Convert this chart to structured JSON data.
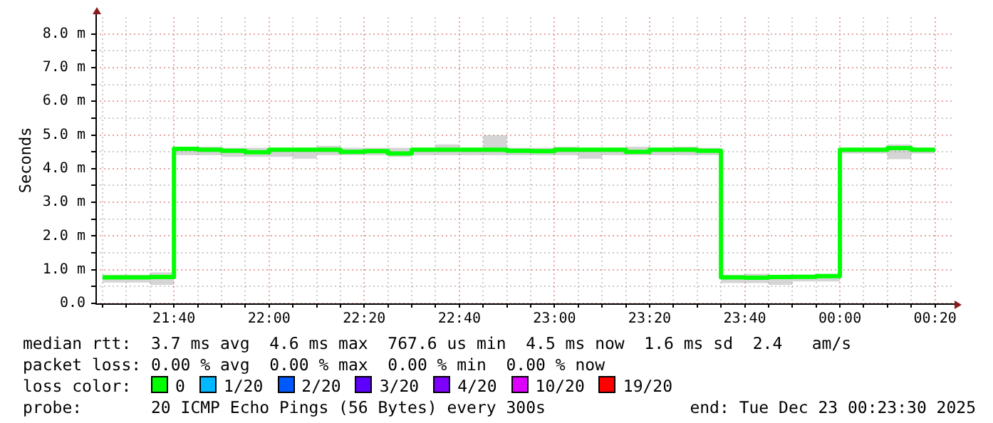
{
  "chart_data": {
    "type": "step",
    "ylabel": "Seconds",
    "legend": "bottom",
    "legend_title": "loss color:",
    "grid": true,
    "x": [
      "2025-12-22T21:25",
      "2025-12-22T21:30",
      "2025-12-22T21:35",
      "2025-12-22T21:40",
      "2025-12-22T21:45",
      "2025-12-22T21:50",
      "2025-12-22T21:55",
      "2025-12-22T22:00",
      "2025-12-22T22:05",
      "2025-12-22T22:10",
      "2025-12-22T22:15",
      "2025-12-22T22:20",
      "2025-12-22T22:25",
      "2025-12-22T22:30",
      "2025-12-22T22:35",
      "2025-12-22T22:40",
      "2025-12-22T22:45",
      "2025-12-22T22:50",
      "2025-12-22T22:55",
      "2025-12-22T23:00",
      "2025-12-22T23:05",
      "2025-12-22T23:10",
      "2025-12-22T23:15",
      "2025-12-22T23:20",
      "2025-12-22T23:25",
      "2025-12-22T23:30",
      "2025-12-22T23:35",
      "2025-12-22T23:40",
      "2025-12-22T23:45",
      "2025-12-22T23:50",
      "2025-12-22T23:55",
      "2025-12-23T00:00",
      "2025-12-23T00:05",
      "2025-12-23T00:10",
      "2025-12-23T00:15",
      "2025-12-23T00:20"
    ],
    "xlim": [
      "2025-12-22T21:23:30",
      "2025-12-23T00:23:30"
    ],
    "xticks": [
      {
        "value": "2025-12-22T21:25",
        "label": null
      },
      {
        "value": "2025-12-22T21:30",
        "label": null
      },
      {
        "value": "2025-12-22T21:35",
        "label": null
      },
      {
        "value": "2025-12-22T21:40",
        "label": "21:40"
      },
      {
        "value": "2025-12-22T21:45",
        "label": null
      },
      {
        "value": "2025-12-22T21:50",
        "label": null
      },
      {
        "value": "2025-12-22T21:55",
        "label": null
      },
      {
        "value": "2025-12-22T22:00",
        "label": "22:00"
      },
      {
        "value": "2025-12-22T22:05",
        "label": null
      },
      {
        "value": "2025-12-22T22:10",
        "label": null
      },
      {
        "value": "2025-12-22T22:15",
        "label": null
      },
      {
        "value": "2025-12-22T22:20",
        "label": "22:20"
      },
      {
        "value": "2025-12-22T22:25",
        "label": null
      },
      {
        "value": "2025-12-22T22:30",
        "label": null
      },
      {
        "value": "2025-12-22T22:35",
        "label": null
      },
      {
        "value": "2025-12-22T22:40",
        "label": "22:40"
      },
      {
        "value": "2025-12-22T22:45",
        "label": null
      },
      {
        "value": "2025-12-22T22:50",
        "label": null
      },
      {
        "value": "2025-12-22T22:55",
        "label": null
      },
      {
        "value": "2025-12-22T23:00",
        "label": "23:00"
      },
      {
        "value": "2025-12-22T23:05",
        "label": null
      },
      {
        "value": "2025-12-22T23:10",
        "label": null
      },
      {
        "value": "2025-12-22T23:15",
        "label": null
      },
      {
        "value": "2025-12-22T23:20",
        "label": "23:20"
      },
      {
        "value": "2025-12-22T23:25",
        "label": null
      },
      {
        "value": "2025-12-22T23:30",
        "label": null
      },
      {
        "value": "2025-12-22T23:35",
        "label": null
      },
      {
        "value": "2025-12-22T23:40",
        "label": "23:40"
      },
      {
        "value": "2025-12-22T23:45",
        "label": null
      },
      {
        "value": "2025-12-22T23:50",
        "label": null
      },
      {
        "value": "2025-12-22T23:55",
        "label": null
      },
      {
        "value": "2025-12-23T00:00",
        "label": "00:00"
      },
      {
        "value": "2025-12-23T00:05",
        "label": null
      },
      {
        "value": "2025-12-23T00:10",
        "label": null
      },
      {
        "value": "2025-12-23T00:15",
        "label": null
      },
      {
        "value": "2025-12-23T00:20",
        "label": "00:20"
      }
    ],
    "ylim": [
      0,
      8.5
    ],
    "yticks": [
      {
        "value": 0,
        "label": "0.0"
      },
      {
        "value": 0.5,
        "label": null
      },
      {
        "value": 1,
        "label": "1.0 m"
      },
      {
        "value": 1.5,
        "label": null
      },
      {
        "value": 2,
        "label": "2.0 m"
      },
      {
        "value": 2.5,
        "label": null
      },
      {
        "value": 3,
        "label": "3.0 m"
      },
      {
        "value": 3.5,
        "label": null
      },
      {
        "value": 4,
        "label": "4.0 m"
      },
      {
        "value": 4.5,
        "label": null
      },
      {
        "value": 5,
        "label": "5.0 m"
      },
      {
        "value": 5.5,
        "label": null
      },
      {
        "value": 6,
        "label": "6.0 m"
      },
      {
        "value": 6.5,
        "label": null
      },
      {
        "value": 7,
        "label": "7.0 m"
      },
      {
        "value": 7.5,
        "label": null
      },
      {
        "value": 8,
        "label": "8.0 m"
      }
    ],
    "series": [
      {
        "name": "0",
        "color": "#00ff00",
        "values": [
          0.77,
          0.77,
          0.78,
          4.59,
          4.56,
          4.53,
          4.49,
          4.56,
          4.56,
          4.56,
          4.5,
          4.52,
          4.45,
          4.56,
          4.56,
          4.56,
          4.56,
          4.53,
          4.52,
          4.56,
          4.56,
          4.56,
          4.5,
          4.56,
          4.56,
          4.53,
          0.77,
          0.76,
          0.78,
          0.79,
          0.81,
          4.56,
          4.56,
          4.61,
          4.56,
          4.56
        ],
        "lower": [
          0.62,
          0.62,
          0.55,
          4.4,
          4.4,
          4.35,
          4.35,
          4.35,
          4.3,
          4.4,
          4.4,
          4.4,
          4.35,
          4.4,
          4.4,
          4.4,
          4.4,
          4.4,
          4.4,
          4.4,
          4.3,
          4.4,
          4.4,
          4.4,
          4.4,
          4.4,
          0.6,
          0.6,
          0.55,
          0.65,
          0.65,
          4.45,
          4.45,
          4.28,
          4.45,
          4.4
        ],
        "upper": [
          0.85,
          0.85,
          0.92,
          4.65,
          4.65,
          4.62,
          4.62,
          4.62,
          4.62,
          4.68,
          4.62,
          4.62,
          4.62,
          4.62,
          4.72,
          4.62,
          4.99,
          4.62,
          4.62,
          4.65,
          4.62,
          4.62,
          4.65,
          4.62,
          4.65,
          4.62,
          0.85,
          0.88,
          0.85,
          0.85,
          0.88,
          4.62,
          4.62,
          4.72,
          4.62,
          4.62
        ]
      },
      {
        "name": "1/20",
        "color": "#00b8ff",
        "values": [
          null,
          null,
          null,
          null,
          null,
          null,
          null,
          null,
          null,
          null,
          null,
          null,
          null,
          null,
          null,
          null,
          null,
          null,
          null,
          null,
          null,
          null,
          null,
          null,
          null,
          null,
          null,
          null,
          null,
          null,
          null,
          null,
          null,
          null,
          null,
          null
        ]
      },
      {
        "name": "2/20",
        "color": "#0059ff",
        "values": [
          null,
          null,
          null,
          null,
          null,
          null,
          null,
          null,
          null,
          null,
          null,
          null,
          null,
          null,
          null,
          null,
          null,
          null,
          null,
          null,
          null,
          null,
          null,
          null,
          null,
          null,
          null,
          null,
          null,
          null,
          null,
          null,
          null,
          null,
          null,
          null
        ]
      },
      {
        "name": "3/20",
        "color": "#5e00ff",
        "values": [
          null,
          null,
          null,
          null,
          null,
          null,
          null,
          null,
          null,
          null,
          null,
          null,
          null,
          null,
          null,
          null,
          null,
          null,
          null,
          null,
          null,
          null,
          null,
          null,
          null,
          null,
          null,
          null,
          null,
          null,
          null,
          null,
          null,
          null,
          null,
          null
        ]
      },
      {
        "name": "4/20",
        "color": "#7e00ff",
        "values": [
          null,
          null,
          null,
          null,
          null,
          null,
          null,
          null,
          null,
          null,
          null,
          null,
          null,
          null,
          null,
          null,
          null,
          null,
          null,
          null,
          null,
          null,
          null,
          null,
          null,
          null,
          null,
          null,
          null,
          null,
          null,
          null,
          null,
          null,
          null,
          null
        ]
      },
      {
        "name": "10/20",
        "color": "#dd00ff",
        "values": [
          null,
          null,
          null,
          null,
          null,
          null,
          null,
          null,
          null,
          null,
          null,
          null,
          null,
          null,
          null,
          null,
          null,
          null,
          null,
          null,
          null,
          null,
          null,
          null,
          null,
          null,
          null,
          null,
          null,
          null,
          null,
          null,
          null,
          null,
          null,
          null
        ]
      },
      {
        "name": "19/20",
        "color": "#ff0000",
        "values": [
          null,
          null,
          null,
          null,
          null,
          null,
          null,
          null,
          null,
          null,
          null,
          null,
          null,
          null,
          null,
          null,
          null,
          null,
          null,
          null,
          null,
          null,
          null,
          null,
          null,
          null,
          null,
          null,
          null,
          null,
          null,
          null,
          null,
          null,
          null,
          null
        ]
      }
    ],
    "annotations": [
      "median rtt:  3.7 ms avg  4.6 ms max  767.6 us min  4.5 ms now  1.6 ms sd  2.4   am/s",
      "packet loss: 0.00 % avg  0.00 % max  0.00 % min  0.00 % now",
      "probe:       20 ICMP Echo Pings (56 Bytes) every 300s",
      "end: Tue Dec 23 00:23:30 2025"
    ]
  }
}
